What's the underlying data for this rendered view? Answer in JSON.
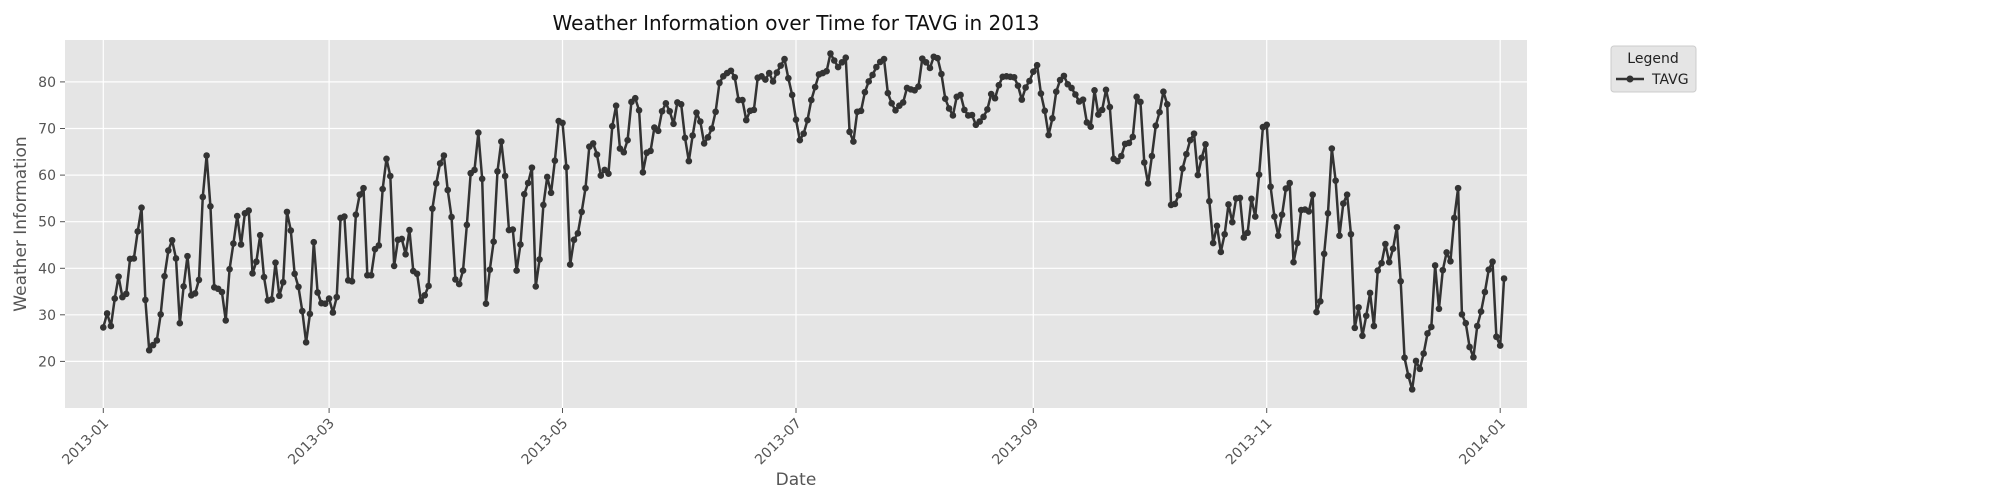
{
  "chart_data": {
    "type": "line",
    "title": "Weather Information over Time for TAVG in 2013",
    "xlabel": "Date",
    "ylabel": "Weather Information",
    "x_range": [
      "2012-12-22",
      "2014-01-08"
    ],
    "ylim": [
      10,
      89
    ],
    "x_ticks": [
      "2013-01",
      "2013-03",
      "2013-05",
      "2013-07",
      "2013-09",
      "2013-11",
      "2014-01"
    ],
    "y_ticks": [
      20,
      30,
      40,
      50,
      60,
      70,
      80
    ],
    "grid": true,
    "legend": {
      "title": "Legend",
      "placement": "outside-top-right"
    },
    "series": [
      {
        "name": "TAVG",
        "color": "#333333",
        "start_date": "2013-01-01",
        "values": [
          27.3,
          30.3,
          27.6,
          33.5,
          38.2,
          33.8,
          34.5,
          42.0,
          42.1,
          47.9,
          53.0,
          33.2,
          22.4,
          23.5,
          24.5,
          30.1,
          38.3,
          43.8,
          46.0,
          42.1,
          28.2,
          36.1,
          42.6,
          34.2,
          34.6,
          37.5,
          55.3,
          64.2,
          53.3,
          35.9,
          35.6,
          34.9,
          28.8,
          39.8,
          45.3,
          51.2,
          45.1,
          51.8,
          52.4,
          38.9,
          41.4,
          47.1,
          38.1,
          33.1,
          33.3,
          41.2,
          34.1,
          37.0,
          52.1,
          48.1,
          38.8,
          36.0,
          30.8,
          24.1,
          30.2,
          45.6,
          34.8,
          32.5,
          32.4,
          33.5,
          30.5,
          33.8,
          50.8,
          51.1,
          37.4,
          37.2,
          51.5,
          55.8,
          57.2,
          38.5,
          38.5,
          44.1,
          44.9,
          57.0,
          63.5,
          59.8,
          40.5,
          46.1,
          46.3,
          43.0,
          48.2,
          39.4,
          38.8,
          33.0,
          34.2,
          36.2,
          52.8,
          58.2,
          62.5,
          64.2,
          56.8,
          51.0,
          37.6,
          36.6,
          39.5,
          49.3,
          60.4,
          61.1,
          69.1,
          59.2,
          32.4,
          39.7,
          45.7,
          60.8,
          67.2,
          59.8,
          48.2,
          48.3,
          39.5,
          45.1,
          55.9,
          58.3,
          61.6,
          36.1,
          41.9,
          53.6,
          59.6,
          56.2,
          63.1,
          71.6,
          71.2,
          61.7,
          40.8,
          46.1,
          47.5,
          52.1,
          57.2,
          66.1,
          66.8,
          64.4,
          59.9,
          61.1,
          60.3,
          70.5,
          74.9,
          65.7,
          64.9,
          67.5,
          75.7,
          76.5,
          73.9,
          60.6,
          64.8,
          65.2,
          70.2,
          69.5,
          73.7,
          75.4,
          73.7,
          71.0,
          75.6,
          75.2,
          68.0,
          63.0,
          68.5,
          73.4,
          71.5,
          66.8,
          68.1,
          70.0,
          73.6,
          79.8,
          81.2,
          81.9,
          82.4,
          81.0,
          76.1,
          76.1,
          71.8,
          73.8,
          74.0,
          80.9,
          81.2,
          80.5,
          81.9,
          80.1,
          82.0,
          83.5,
          84.9,
          80.8,
          77.2,
          71.9,
          67.5,
          68.9,
          71.8,
          76.1,
          78.9,
          81.6,
          81.9,
          82.3,
          86.1,
          84.6,
          83.2,
          84.2,
          85.2,
          69.3,
          67.2,
          73.6,
          73.8,
          77.8,
          80.1,
          81.5,
          83.2,
          84.3,
          84.9,
          77.6,
          75.4,
          73.9,
          74.9,
          75.6,
          78.7,
          78.4,
          78.2,
          79.0,
          85.0,
          84.2,
          83.0,
          85.4,
          85.1,
          81.7,
          76.4,
          74.3,
          72.8,
          76.8,
          77.2,
          74.0,
          72.8,
          72.9,
          70.8,
          71.5,
          72.5,
          74.1,
          77.4,
          76.5,
          79.3,
          81.1,
          81.2,
          81.1,
          81.0,
          79.2,
          76.2,
          78.8,
          80.2,
          82.2,
          83.6,
          77.5,
          73.8,
          68.6,
          72.2,
          77.9,
          80.4,
          81.3,
          79.5,
          78.7,
          77.3,
          75.8,
          76.2,
          71.3,
          70.4,
          78.2,
          73.0,
          74.0,
          78.3,
          74.6,
          63.5,
          63.0,
          64.1,
          66.7,
          66.9,
          68.2,
          76.8,
          75.7,
          62.7,
          58.2,
          64.1,
          70.6,
          73.5,
          77.9,
          75.2,
          53.6,
          53.8,
          55.7,
          61.4,
          64.5,
          67.5,
          68.9,
          60.0,
          63.7,
          66.6,
          54.4,
          45.4,
          49.1,
          43.5,
          47.3,
          53.7,
          49.9,
          55.0,
          55.1,
          46.6,
          47.6,
          54.9,
          51.1,
          60.1,
          70.3,
          70.8,
          57.5,
          51.1,
          47.0,
          51.5,
          57.1,
          58.3,
          41.3,
          45.4,
          52.5,
          52.6,
          52.2,
          55.8,
          30.6,
          32.9,
          43.1,
          51.8,
          65.7,
          58.8,
          47.0,
          53.9,
          55.8,
          47.3,
          27.2,
          31.6,
          25.5,
          29.8,
          34.7,
          27.6,
          39.5,
          41.1,
          45.2,
          41.3,
          44.2,
          48.8,
          37.2,
          20.8,
          16.9,
          14.0,
          20.1,
          18.4,
          21.7,
          26.0,
          27.4,
          40.6,
          31.3,
          39.6,
          43.4,
          41.5,
          50.8,
          57.2,
          30.1,
          28.2,
          23.1,
          20.9,
          27.6,
          30.7,
          34.9,
          39.7,
          41.4,
          25.3,
          23.4,
          37.8
        ]
      }
    ]
  }
}
